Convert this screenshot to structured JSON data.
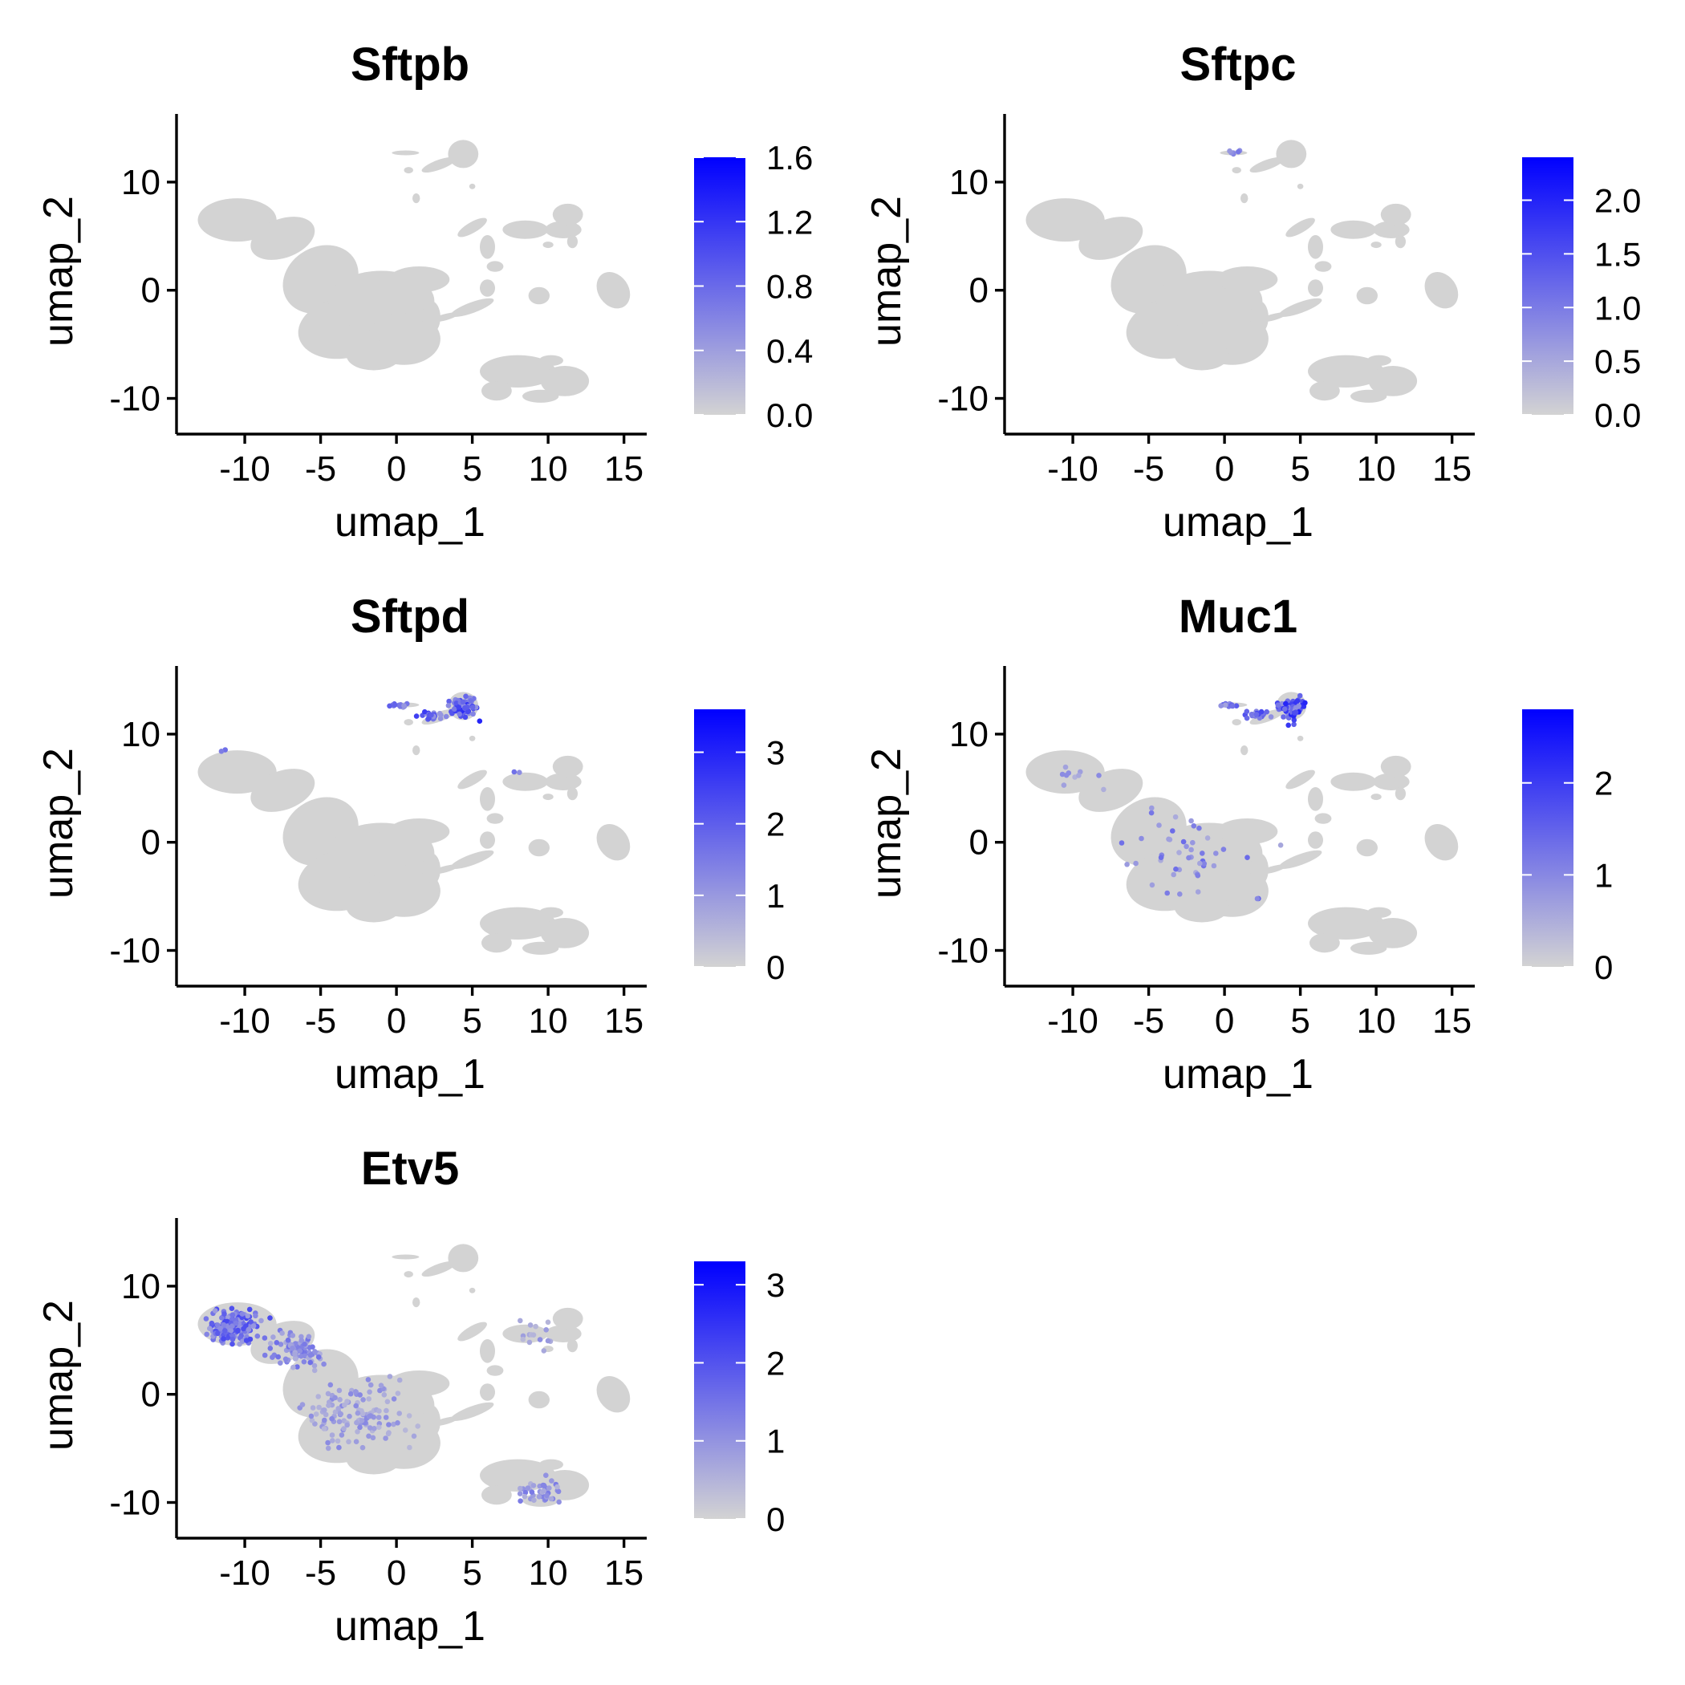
{
  "colors": {
    "low": "#d3d3d3",
    "high": "#0000ff"
  },
  "chart_data": [
    {
      "type": "scatter",
      "title": "Sftpb",
      "xlabel": "umap_1",
      "ylabel": "umap_2",
      "xlim": [
        -14.5,
        16.5
      ],
      "ylim": [
        -13.3,
        16.3
      ],
      "x_ticks": [
        -10,
        -5,
        0,
        5,
        10,
        15
      ],
      "y_ticks": [
        -10,
        0,
        10
      ],
      "colorbar": {
        "min": 0,
        "max": 1.6,
        "ticks": [
          0.0,
          0.4,
          0.8,
          1.2,
          1.6
        ],
        "tick_labels": [
          "0.0",
          "0.4",
          "0.8",
          "1.2",
          "1.6"
        ]
      },
      "hotspots": []
    },
    {
      "type": "scatter",
      "title": "Sftpc",
      "xlabel": "umap_1",
      "ylabel": "umap_2",
      "xlim": [
        -14.5,
        16.5
      ],
      "ylim": [
        -13.3,
        16.3
      ],
      "x_ticks": [
        -10,
        -5,
        0,
        5,
        10,
        15
      ],
      "y_ticks": [
        -10,
        0,
        10
      ],
      "colorbar": {
        "min": 0,
        "max": 2.4,
        "ticks": [
          0.0,
          0.5,
          1.0,
          1.5,
          2.0
        ],
        "tick_labels": [
          "0.0",
          "0.5",
          "1.0",
          "1.5",
          "2.0"
        ]
      },
      "hotspots": [
        {
          "x": 0.5,
          "y": 12.7,
          "sx": 0.9,
          "sy": 0.25,
          "value": 1.2,
          "n": 6
        }
      ]
    },
    {
      "type": "scatter",
      "title": "Sftpd",
      "xlabel": "umap_1",
      "ylabel": "umap_2",
      "xlim": [
        -14.5,
        16.5
      ],
      "ylim": [
        -13.3,
        16.3
      ],
      "x_ticks": [
        -10,
        -5,
        0,
        5,
        10,
        15
      ],
      "y_ticks": [
        -10,
        0,
        10
      ],
      "colorbar": {
        "min": 0,
        "max": 3.6,
        "ticks": [
          0,
          1,
          2,
          3
        ],
        "tick_labels": [
          "0",
          "1",
          "2",
          "3"
        ]
      },
      "hotspots": [
        {
          "x": 4.4,
          "y": 12.5,
          "sx": 0.8,
          "sy": 1.1,
          "value": 3.0,
          "n": 70
        },
        {
          "x": 2.3,
          "y": 11.8,
          "sx": 0.8,
          "sy": 0.4,
          "value": 2.6,
          "n": 30
        },
        {
          "x": 0.2,
          "y": 12.7,
          "sx": 0.7,
          "sy": 0.2,
          "value": 2.2,
          "n": 14
        },
        {
          "x": -11.5,
          "y": 8.5,
          "sx": 0.2,
          "sy": 0.2,
          "value": 2.2,
          "n": 2
        },
        {
          "x": 8.0,
          "y": 6.5,
          "sx": 0.3,
          "sy": 0.3,
          "value": 1.8,
          "n": 2
        }
      ]
    },
    {
      "type": "scatter",
      "title": "Muc1",
      "xlabel": "umap_1",
      "ylabel": "umap_2",
      "xlim": [
        -14.5,
        16.5
      ],
      "ylim": [
        -13.3,
        16.3
      ],
      "x_ticks": [
        -10,
        -5,
        0,
        5,
        10,
        15
      ],
      "y_ticks": [
        -10,
        0,
        10
      ],
      "colorbar": {
        "min": 0,
        "max": 2.8,
        "ticks": [
          0,
          1,
          2
        ],
        "tick_labels": [
          "0",
          "1",
          "2"
        ]
      },
      "hotspots": [
        {
          "x": 4.4,
          "y": 12.4,
          "sx": 0.8,
          "sy": 1.1,
          "value": 2.4,
          "n": 70
        },
        {
          "x": 2.3,
          "y": 11.8,
          "sx": 0.8,
          "sy": 0.4,
          "value": 2.1,
          "n": 25
        },
        {
          "x": 0.3,
          "y": 12.7,
          "sx": 0.7,
          "sy": 0.2,
          "value": 1.8,
          "n": 10
        },
        {
          "x": -3.0,
          "y": -1.0,
          "sx": 4.0,
          "sy": 4.0,
          "value": 1.4,
          "n": 45
        },
        {
          "x": -10.0,
          "y": 6.0,
          "sx": 2.0,
          "sy": 1.5,
          "value": 1.2,
          "n": 10
        },
        {
          "x": 2.2,
          "y": -5.2,
          "sx": 0.1,
          "sy": 0.1,
          "value": 2.0,
          "n": 2
        }
      ]
    },
    {
      "type": "scatter",
      "title": "Etv5",
      "xlabel": "umap_1",
      "ylabel": "umap_2",
      "xlim": [
        -14.5,
        16.5
      ],
      "ylim": [
        -13.3,
        16.3
      ],
      "x_ticks": [
        -10,
        -5,
        0,
        5,
        10,
        15
      ],
      "y_ticks": [
        -10,
        0,
        10
      ],
      "colorbar": {
        "min": 0,
        "max": 3.3,
        "ticks": [
          0,
          1,
          2,
          3
        ],
        "tick_labels": [
          "0",
          "1",
          "2",
          "3"
        ]
      },
      "hotspots": [
        {
          "x": -10.8,
          "y": 6.3,
          "sx": 1.6,
          "sy": 1.5,
          "value": 2.2,
          "n": 160
        },
        {
          "x": -6.5,
          "y": 4.0,
          "sx": 1.8,
          "sy": 1.6,
          "value": 1.6,
          "n": 80
        },
        {
          "x": -2.5,
          "y": -2.0,
          "sx": 3.0,
          "sy": 3.0,
          "value": 1.2,
          "n": 130
        },
        {
          "x": 9.5,
          "y": -9.0,
          "sx": 1.6,
          "sy": 1.0,
          "value": 1.4,
          "n": 40
        },
        {
          "x": 9.0,
          "y": 5.5,
          "sx": 1.8,
          "sy": 1.2,
          "value": 1.1,
          "n": 15
        }
      ]
    }
  ]
}
